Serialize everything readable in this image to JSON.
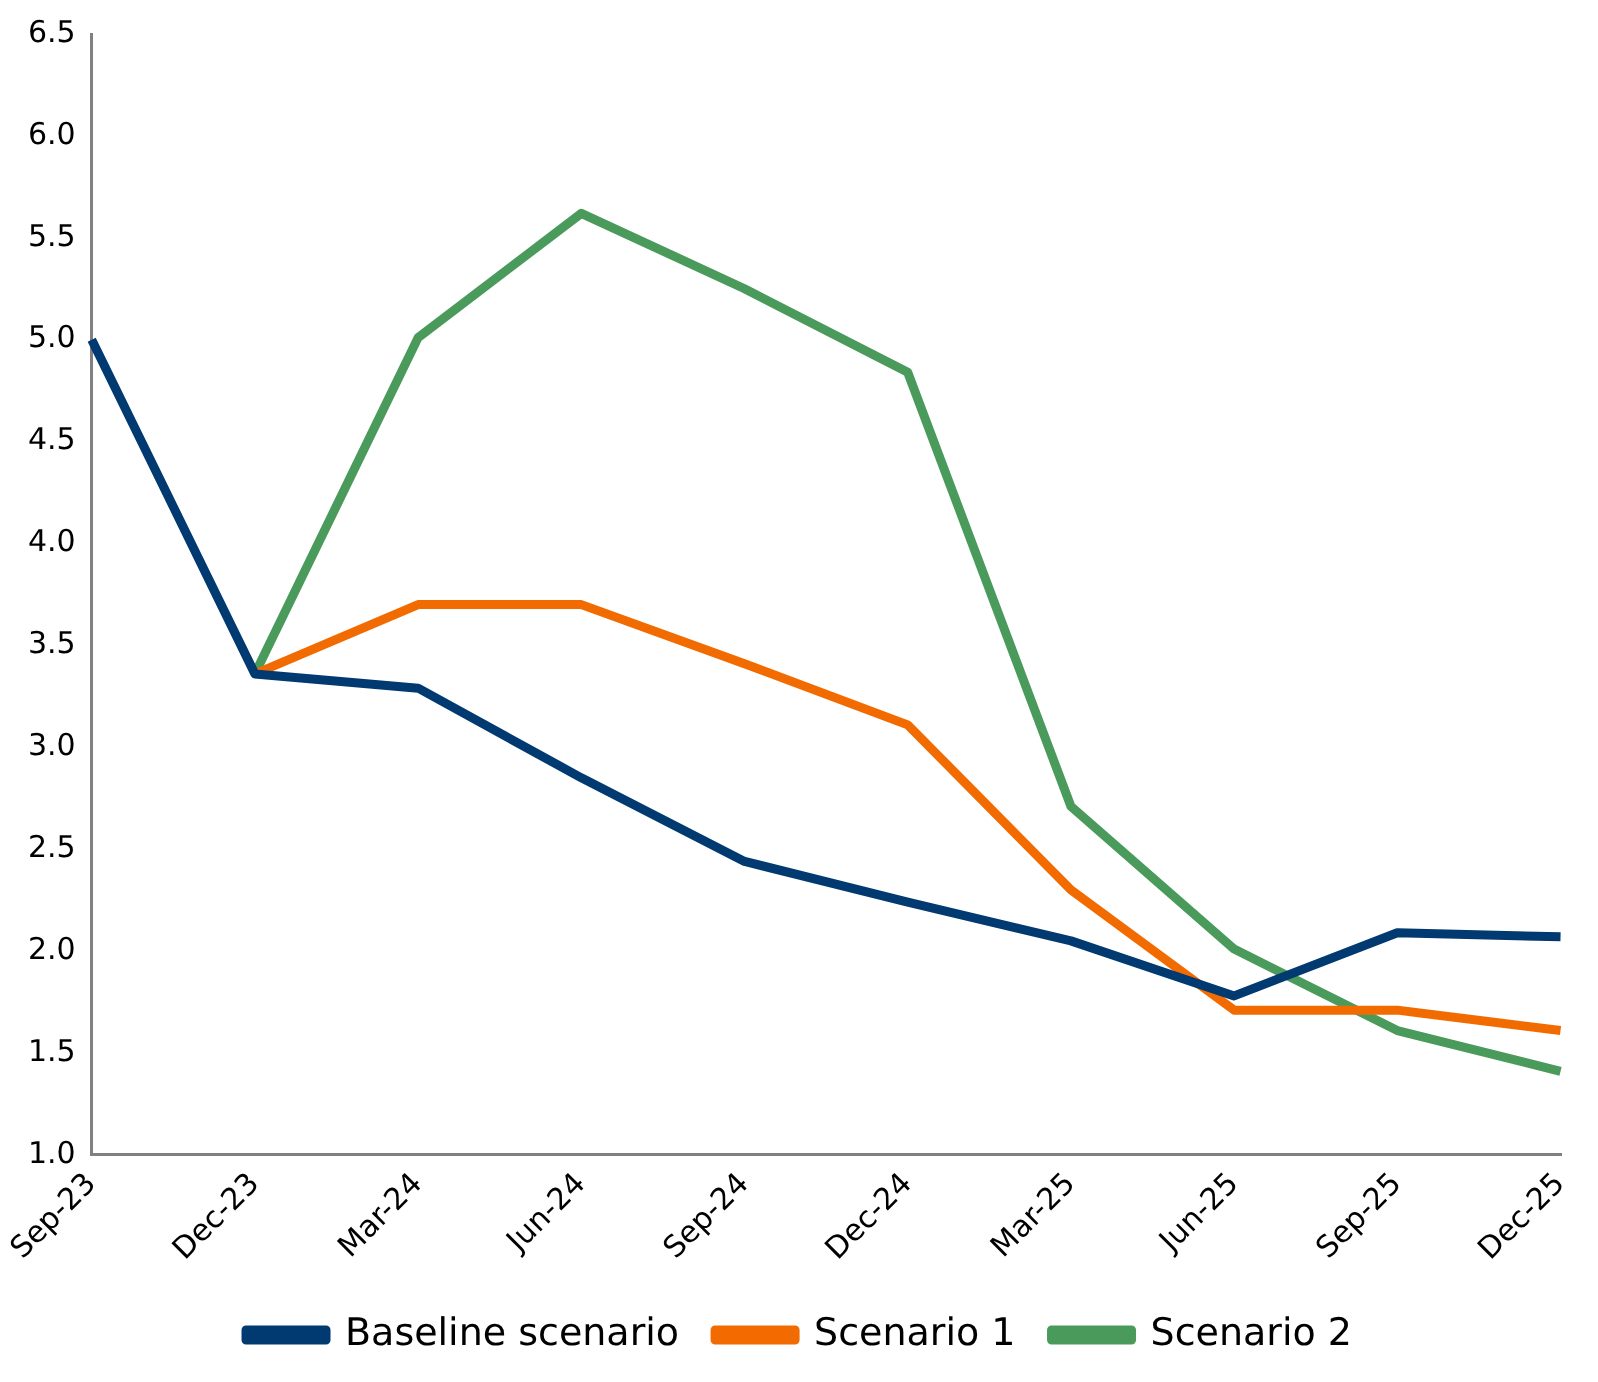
{
  "chart_data": {
    "type": "line",
    "categories": [
      "Sep-23",
      "Dec-23",
      "Mar-24",
      "Jun-24",
      "Sep-24",
      "Dec-24",
      "Mar-25",
      "Jun-25",
      "Sep-25",
      "Dec-25"
    ],
    "series": [
      {
        "name": "Baseline scenario",
        "color": "#003a70",
        "values": [
          5.0,
          3.36,
          3.29,
          2.85,
          2.44,
          2.24,
          2.05,
          1.78,
          2.09,
          2.07
        ]
      },
      {
        "name": "Scenario 1",
        "color": "#f26b00",
        "values": [
          null,
          3.36,
          3.7,
          3.7,
          3.41,
          3.11,
          2.3,
          1.71,
          1.71,
          1.61
        ]
      },
      {
        "name": "Scenario 2",
        "color": "#4a9a5c",
        "values": [
          null,
          3.36,
          5.01,
          5.62,
          5.25,
          4.84,
          2.71,
          2.01,
          1.61,
          1.41
        ]
      }
    ],
    "ylim": [
      1.0,
      6.5
    ],
    "yticks": [
      {
        "value": 1,
        "label": "1.0"
      },
      {
        "value": 1.5,
        "label": "1.5"
      },
      {
        "value": 2,
        "label": "2.0"
      },
      {
        "value": 2.5,
        "label": "2.5"
      },
      {
        "value": 3,
        "label": "3.0"
      },
      {
        "value": 3.5,
        "label": "3.5"
      },
      {
        "value": 4,
        "label": "4.0"
      },
      {
        "value": 4.5,
        "label": "4.5"
      },
      {
        "value": 5,
        "label": "5.0"
      },
      {
        "value": 5.5,
        "label": "5.5"
      },
      {
        "value": 6,
        "label": "6.0"
      },
      {
        "value": 6.5,
        "label": "6.5"
      }
    ],
    "grid": false,
    "legend": "bottom",
    "marker": "none",
    "line_style": "solid"
  }
}
